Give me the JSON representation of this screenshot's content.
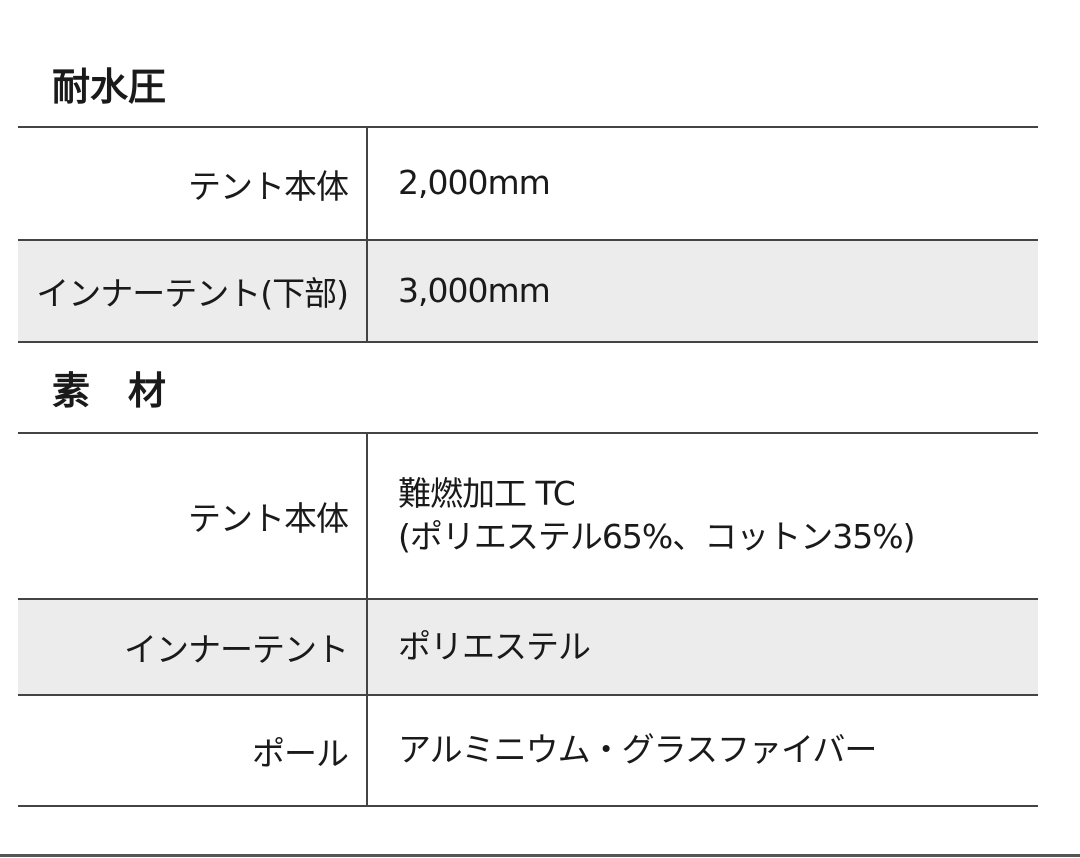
{
  "sections": [
    {
      "title": "耐水圧",
      "rows": [
        {
          "label": "テント本体",
          "value": [
            "2,000mm"
          ]
        },
        {
          "label": "インナーテント(下部)",
          "value": [
            "3,000mm"
          ]
        }
      ]
    },
    {
      "title": "素　材",
      "rows": [
        {
          "label": "テント本体",
          "value": [
            "難燃加工 TC",
            "(ポリエステル65%、コットン35%)"
          ]
        },
        {
          "label": "インナーテント",
          "value": [
            "ポリエステル"
          ]
        },
        {
          "label": "ポール",
          "value": [
            "アルミニウム・グラスファイバー"
          ]
        }
      ]
    }
  ]
}
